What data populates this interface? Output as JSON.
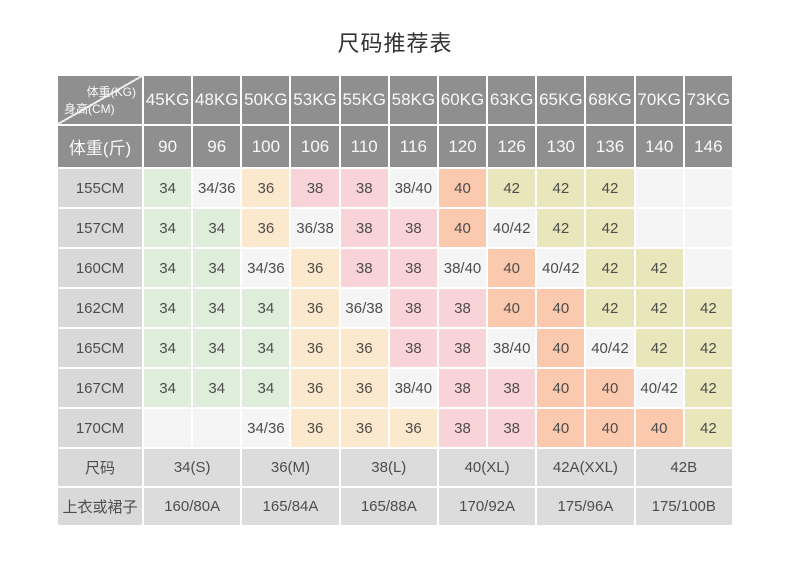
{
  "title": "尺码推荐表",
  "colors": {
    "header_bg": "#8f8f8f",
    "label_bg": "#d9d9d9",
    "footer_bg": "#dcdcdc",
    "green": "#dfeeda",
    "peach": "#fce8cc",
    "pink": "#f8d4d8",
    "salmon": "#fbc9ad",
    "khaki": "#e8e6ba",
    "light": "#f5f5f5",
    "text_dark": "#4d4d4d",
    "text_white": "#f8f8f8"
  },
  "chart_data": {
    "type": "table",
    "title": "尺码推荐表",
    "corner": {
      "top": "体重(KG)",
      "bottom": "身高(CM)"
    },
    "columns_weight_kg": [
      "45KG",
      "48KG",
      "50KG",
      "53KG",
      "55KG",
      "58KG",
      "60KG",
      "63KG",
      "65KG",
      "68KG",
      "70KG",
      "73KG"
    ],
    "row_weight_jin": {
      "label": "体重(斤)",
      "values": [
        "90",
        "96",
        "100",
        "106",
        "110",
        "116",
        "120",
        "126",
        "130",
        "136",
        "140",
        "146"
      ]
    },
    "height_rows": [
      {
        "label": "155CM",
        "cells": [
          "34",
          "34/36",
          "36",
          "38",
          "38",
          "38/40",
          "40",
          "42",
          "42",
          "42",
          "",
          ""
        ]
      },
      {
        "label": "157CM",
        "cells": [
          "34",
          "34",
          "36",
          "36/38",
          "38",
          "38",
          "40",
          "40/42",
          "42",
          "42",
          "",
          ""
        ]
      },
      {
        "label": "160CM",
        "cells": [
          "34",
          "34",
          "34/36",
          "36",
          "38",
          "38",
          "38/40",
          "40",
          "40/42",
          "42",
          "42",
          ""
        ]
      },
      {
        "label": "162CM",
        "cells": [
          "34",
          "34",
          "34",
          "36",
          "36/38",
          "38",
          "38",
          "40",
          "40",
          "42",
          "42",
          "42"
        ]
      },
      {
        "label": "165CM",
        "cells": [
          "34",
          "34",
          "34",
          "36",
          "36",
          "38",
          "38",
          "38/40",
          "40",
          "40/42",
          "42",
          "42"
        ]
      },
      {
        "label": "167CM",
        "cells": [
          "34",
          "34",
          "34",
          "36",
          "36",
          "38/40",
          "38",
          "38",
          "40",
          "40",
          "40/42",
          "42"
        ]
      },
      {
        "label": "170CM",
        "cells": [
          "",
          "",
          "34/36",
          "36",
          "36",
          "36",
          "38",
          "38",
          "40",
          "40",
          "40",
          "42"
        ]
      }
    ],
    "footer_rows": [
      {
        "label": "尺码",
        "colspan": 2,
        "values": [
          "34(S)",
          "36(M)",
          "38(L)",
          "40(XL)",
          "42A(XXL)",
          "42B"
        ]
      },
      {
        "label": "上衣或裙子",
        "colspan": 2,
        "values": [
          "160/80A",
          "165/84A",
          "165/88A",
          "170/92A",
          "175/96A",
          "175/100B"
        ]
      }
    ]
  }
}
